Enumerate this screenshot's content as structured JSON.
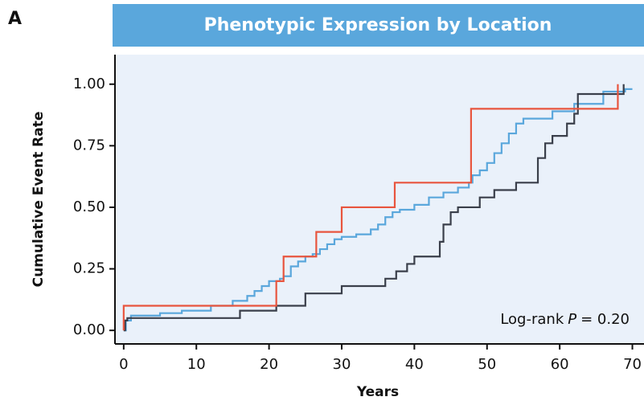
{
  "panel_label": "A",
  "chart_data": {
    "type": "step",
    "title": "Phenotypic Expression by Location",
    "xlabel": "Years",
    "ylabel": "Cumulative Event Rate",
    "annotation": {
      "prefix": "Log-rank",
      "italic": "P",
      "suffix": "= 0.20"
    },
    "xlim": [
      -1.2,
      71.6
    ],
    "ylim": [
      -0.055,
      1.12
    ],
    "xticks": [
      0,
      10,
      20,
      30,
      40,
      50,
      60,
      70
    ],
    "yticks": [
      {
        "value": 0,
        "label": "0.00"
      },
      {
        "value": 0.25,
        "label": "0.25"
      },
      {
        "value": 0.5,
        "label": "0.50"
      },
      {
        "value": 0.75,
        "label": "0.75"
      },
      {
        "value": 1,
        "label": "1.00"
      }
    ],
    "series": [
      {
        "color": "#5aa7dc",
        "x": [
          0,
          0.3,
          1,
          5,
          8,
          12,
          15,
          17,
          18,
          19,
          20,
          21.5,
          22,
          23,
          24,
          25,
          26,
          27,
          28,
          29,
          30,
          32,
          34,
          35,
          36,
          37,
          38,
          40,
          42,
          44,
          46,
          47.5,
          48,
          49,
          50,
          51,
          52,
          53,
          54,
          55,
          59,
          62,
          66,
          69,
          70
        ],
        "values": [
          0,
          0.04,
          0.06,
          0.07,
          0.08,
          0.1,
          0.12,
          0.14,
          0.16,
          0.18,
          0.2,
          0.21,
          0.22,
          0.26,
          0.28,
          0.3,
          0.31,
          0.33,
          0.35,
          0.37,
          0.38,
          0.39,
          0.41,
          0.43,
          0.46,
          0.48,
          0.49,
          0.51,
          0.54,
          0.56,
          0.58,
          0.6,
          0.63,
          0.65,
          0.68,
          0.72,
          0.76,
          0.8,
          0.84,
          0.86,
          0.89,
          0.92,
          0.97,
          0.98,
          0.98
        ]
      },
      {
        "color": "#3a3f4a",
        "x": [
          0,
          0.2,
          0.5,
          16,
          21,
          25,
          30,
          36,
          37.5,
          39,
          40,
          43.5,
          44,
          45,
          46,
          49,
          51,
          54,
          57,
          58,
          59,
          61,
          62,
          62.5,
          68.8
        ],
        "values": [
          0,
          0.04,
          0.05,
          0.08,
          0.1,
          0.15,
          0.18,
          0.21,
          0.24,
          0.27,
          0.3,
          0.36,
          0.43,
          0.48,
          0.5,
          0.54,
          0.57,
          0.6,
          0.7,
          0.76,
          0.79,
          0.84,
          0.88,
          0.96,
          1
        ]
      },
      {
        "color": "#e8553e",
        "x": [
          0,
          0,
          21,
          22,
          26.5,
          30,
          37.3,
          47.8,
          68
        ],
        "values": [
          0,
          0.1,
          0.2,
          0.3,
          0.4,
          0.5,
          0.6,
          0.9,
          1
        ]
      }
    ]
  }
}
